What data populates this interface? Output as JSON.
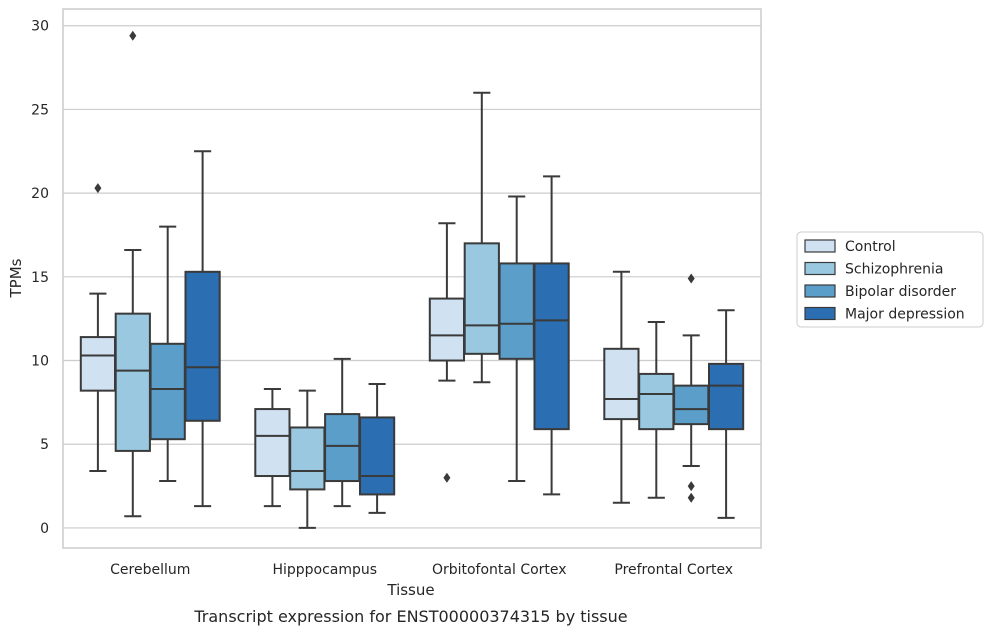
{
  "chart_data": {
    "type": "box",
    "caption": "Transcript expression for ENST00000374315 by tissue",
    "xlabel": "Tissue",
    "ylabel": "TPMs",
    "ylim": [
      -1.2,
      31
    ],
    "yticks": [
      0,
      5,
      10,
      15,
      20,
      25,
      30
    ],
    "grid": true,
    "legend_position": "right",
    "categories": [
      "Cerebellum",
      "Hipppocampus",
      "Orbitofontal Cortex",
      "Prefrontal Cortex"
    ],
    "series": [
      {
        "name": "Control",
        "color": "#d0e1f2",
        "boxes": [
          {
            "whislo": 3.4,
            "q1": 8.2,
            "med": 10.3,
            "q3": 11.4,
            "whishi": 14.0,
            "fliers": [
              20.3
            ]
          },
          {
            "whislo": 1.3,
            "q1": 3.1,
            "med": 5.5,
            "q3": 7.1,
            "whishi": 8.3,
            "fliers": []
          },
          {
            "whislo": 8.8,
            "q1": 10.0,
            "med": 11.5,
            "q3": 13.7,
            "whishi": 18.2,
            "fliers": [
              3.0
            ]
          },
          {
            "whislo": 1.5,
            "q1": 6.5,
            "med": 7.7,
            "q3": 10.7,
            "whishi": 15.3,
            "fliers": []
          }
        ]
      },
      {
        "name": "Schizophrenia",
        "color": "#9ac8e0",
        "boxes": [
          {
            "whislo": 0.7,
            "q1": 4.6,
            "med": 9.4,
            "q3": 12.8,
            "whishi": 16.6,
            "fliers": [
              29.4
            ]
          },
          {
            "whislo": 0.0,
            "q1": 2.3,
            "med": 3.4,
            "q3": 6.0,
            "whishi": 8.2,
            "fliers": []
          },
          {
            "whislo": 8.7,
            "q1": 10.4,
            "med": 12.1,
            "q3": 17.0,
            "whishi": 26.0,
            "fliers": []
          },
          {
            "whislo": 1.8,
            "q1": 5.9,
            "med": 8.0,
            "q3": 9.2,
            "whishi": 12.3,
            "fliers": []
          }
        ]
      },
      {
        "name": "Bipolar disorder",
        "color": "#5a9ec9",
        "boxes": [
          {
            "whislo": 2.8,
            "q1": 5.3,
            "med": 8.3,
            "q3": 11.0,
            "whishi": 18.0,
            "fliers": []
          },
          {
            "whislo": 1.3,
            "q1": 2.8,
            "med": 4.9,
            "q3": 6.8,
            "whishi": 10.1,
            "fliers": []
          },
          {
            "whislo": 2.8,
            "q1": 10.1,
            "med": 12.2,
            "q3": 15.8,
            "whishi": 19.8,
            "fliers": []
          },
          {
            "whislo": 3.7,
            "q1": 6.2,
            "med": 7.1,
            "q3": 8.5,
            "whishi": 11.5,
            "fliers": [
              14.9,
              2.5,
              1.8
            ]
          }
        ]
      },
      {
        "name": "Major depression",
        "color": "#2b6eb1",
        "boxes": [
          {
            "whislo": 1.3,
            "q1": 6.4,
            "med": 9.6,
            "q3": 15.3,
            "whishi": 22.5,
            "fliers": []
          },
          {
            "whislo": 0.9,
            "q1": 2.0,
            "med": 3.1,
            "q3": 6.6,
            "whishi": 8.6,
            "fliers": []
          },
          {
            "whislo": 2.0,
            "q1": 5.9,
            "med": 12.4,
            "q3": 15.8,
            "whishi": 21.0,
            "fliers": []
          },
          {
            "whislo": 0.6,
            "q1": 5.9,
            "med": 8.5,
            "q3": 9.8,
            "whishi": 13.0,
            "fliers": []
          }
        ]
      }
    ]
  }
}
